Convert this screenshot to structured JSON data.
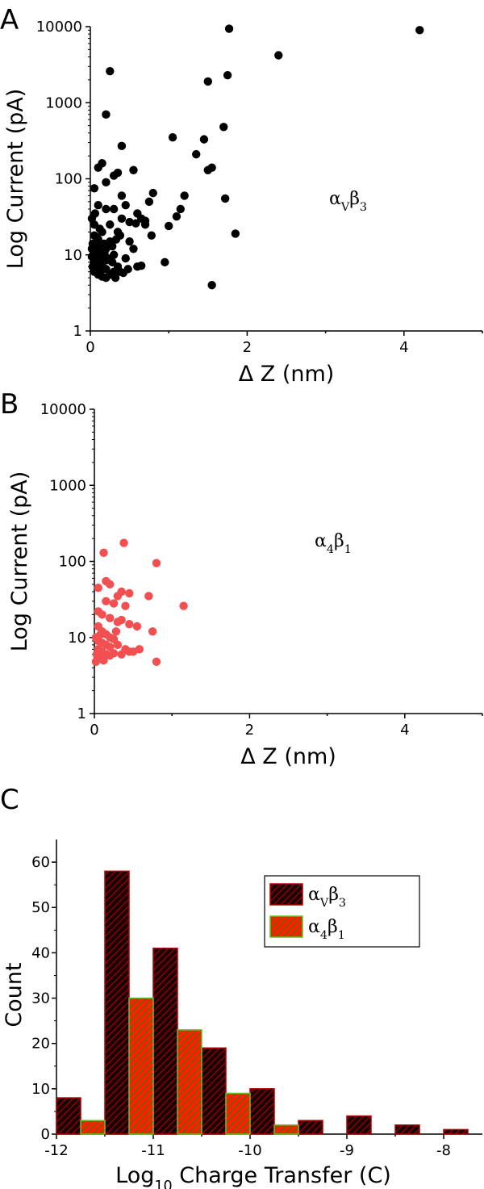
{
  "chart_data": [
    {
      "panel": "A",
      "type": "scatter",
      "xlabel": "Δ Z (nm)",
      "ylabel": "Log Current (pA)",
      "yscale": "log",
      "xlim": [
        0,
        5
      ],
      "ylim": [
        1,
        10000
      ],
      "x_ticks": [
        "0",
        "2",
        "4"
      ],
      "y_ticks": [
        "1",
        "10",
        "100",
        "1000",
        "10000"
      ],
      "annotation": {
        "base": "α",
        "sub1": "V",
        "mid": "β",
        "sub2": "3"
      },
      "color": "#000000",
      "points": [
        [
          0.25,
          2600
        ],
        [
          0.2,
          700
        ],
        [
          0.05,
          75
        ],
        [
          0.15,
          160
        ],
        [
          0.1,
          140
        ],
        [
          0.2,
          90
        ],
        [
          0.3,
          110
        ],
        [
          0.35,
          120
        ],
        [
          0.4,
          270
        ],
        [
          0.55,
          130
        ],
        [
          0.4,
          60
        ],
        [
          0.45,
          45
        ],
        [
          0.3,
          40
        ],
        [
          0.1,
          45
        ],
        [
          0.2,
          40
        ],
        [
          0.6,
          35
        ],
        [
          0.65,
          30
        ],
        [
          0.7,
          28
        ],
        [
          0.75,
          50
        ],
        [
          0.8,
          65
        ],
        [
          0.7,
          25
        ],
        [
          0.78,
          18
        ],
        [
          0.5,
          15
        ],
        [
          0.55,
          12
        ],
        [
          0.35,
          20
        ],
        [
          0.4,
          30
        ],
        [
          0.5,
          27
        ],
        [
          0.05,
          25
        ],
        [
          0.15,
          20
        ],
        [
          0.25,
          15
        ],
        [
          0.3,
          10
        ],
        [
          0.45,
          9
        ],
        [
          0.35,
          7
        ],
        [
          0.3,
          6
        ],
        [
          0.05,
          18
        ],
        [
          0.1,
          16
        ],
        [
          0.15,
          14
        ],
        [
          0.2,
          12
        ],
        [
          0.05,
          11
        ],
        [
          0.1,
          10
        ],
        [
          0.15,
          9
        ],
        [
          0.2,
          8.5
        ],
        [
          0.05,
          8
        ],
        [
          0.1,
          7.5
        ],
        [
          0.15,
          7
        ],
        [
          0.2,
          6.5
        ],
        [
          0.05,
          6
        ],
        [
          0.1,
          5.5
        ],
        [
          0.15,
          5.2
        ],
        [
          0.2,
          5
        ],
        [
          0.02,
          12
        ],
        [
          0.08,
          13
        ],
        [
          0.12,
          11
        ],
        [
          0.18,
          10.5
        ],
        [
          0.22,
          9
        ],
        [
          0.28,
          8
        ],
        [
          0.02,
          9.5
        ],
        [
          0.06,
          8.5
        ],
        [
          0.03,
          7
        ],
        [
          0.07,
          6.5
        ],
        [
          0.12,
          6
        ],
        [
          0.25,
          5.5
        ],
        [
          0.32,
          5
        ],
        [
          0.38,
          6
        ],
        [
          0.42,
          5.8
        ],
        [
          0.48,
          6.5
        ],
        [
          0.6,
          7
        ],
        [
          0.65,
          7.2
        ],
        [
          0.95,
          8
        ],
        [
          0.58,
          26
        ],
        [
          1.0,
          24
        ],
        [
          1.15,
          40
        ],
        [
          1.1,
          32
        ],
        [
          1.2,
          60
        ],
        [
          1.05,
          350
        ],
        [
          1.35,
          210
        ],
        [
          1.45,
          330
        ],
        [
          1.5,
          130
        ],
        [
          1.55,
          140
        ],
        [
          1.5,
          1900
        ],
        [
          1.75,
          2300
        ],
        [
          1.77,
          9400
        ],
        [
          1.7,
          480
        ],
        [
          1.72,
          55
        ],
        [
          1.85,
          19
        ],
        [
          1.55,
          4
        ],
        [
          2.4,
          4200
        ],
        [
          4.2,
          9000
        ],
        [
          0.02,
          30
        ],
        [
          0.06,
          35
        ],
        [
          0.12,
          22
        ],
        [
          0.25,
          25
        ],
        [
          0.08,
          17
        ],
        [
          0.18,
          14
        ],
        [
          0.28,
          13
        ],
        [
          0.33,
          16
        ],
        [
          0.38,
          18
        ],
        [
          0.03,
          14
        ]
      ]
    },
    {
      "panel": "B",
      "type": "scatter",
      "xlabel": "Δ Z (nm)",
      "ylabel": "Log Current (pA)",
      "yscale": "log",
      "xlim": [
        0,
        5
      ],
      "ylim": [
        1,
        10000
      ],
      "x_ticks": [
        "0",
        "2",
        "4"
      ],
      "y_ticks": [
        "1",
        "10",
        "100",
        "1000",
        "10000"
      ],
      "annotation": {
        "base": "α",
        "sub1": "4",
        "mid": "β",
        "sub2": "1"
      },
      "color": "#f25050",
      "points": [
        [
          0.38,
          175
        ],
        [
          0.12,
          130
        ],
        [
          0.8,
          95
        ],
        [
          0.15,
          55
        ],
        [
          0.2,
          50
        ],
        [
          0.05,
          45
        ],
        [
          0.35,
          40
        ],
        [
          0.45,
          38
        ],
        [
          0.3,
          35
        ],
        [
          0.7,
          35
        ],
        [
          0.15,
          30
        ],
        [
          0.25,
          28
        ],
        [
          0.4,
          26
        ],
        [
          1.15,
          26
        ],
        [
          0.05,
          22
        ],
        [
          0.1,
          20
        ],
        [
          0.2,
          18
        ],
        [
          0.3,
          16
        ],
        [
          0.45,
          15
        ],
        [
          0.55,
          14
        ],
        [
          0.75,
          12
        ],
        [
          0.05,
          14
        ],
        [
          0.1,
          12
        ],
        [
          0.15,
          11
        ],
        [
          0.2,
          10
        ],
        [
          0.25,
          9.5
        ],
        [
          0.05,
          9
        ],
        [
          0.1,
          8.5
        ],
        [
          0.15,
          8
        ],
        [
          0.2,
          7.5
        ],
        [
          0.3,
          8
        ],
        [
          0.4,
          7
        ],
        [
          0.45,
          6.5
        ],
        [
          0.5,
          6.5
        ],
        [
          0.58,
          7
        ],
        [
          0.05,
          7
        ],
        [
          0.1,
          6.5
        ],
        [
          0.15,
          6
        ],
        [
          0.2,
          5.8
        ],
        [
          0.03,
          6
        ],
        [
          0.06,
          5.5
        ],
        [
          0.09,
          5.2
        ],
        [
          0.12,
          5
        ],
        [
          0.02,
          4.8
        ],
        [
          0.35,
          6
        ],
        [
          0.25,
          6.2
        ],
        [
          0.8,
          4.8
        ],
        [
          0.35,
          17
        ],
        [
          0.02,
          10
        ],
        [
          0.08,
          11
        ],
        [
          0.28,
          12
        ]
      ]
    },
    {
      "panel": "C",
      "type": "bar",
      "xlabel_main": "Log",
      "xlabel_sub": "10",
      "xlabel_rest": " Charge Transfer (C)",
      "ylabel": "Count",
      "xlim": [
        -12,
        -7.6
      ],
      "ylim": [
        0,
        65
      ],
      "x_ticks": [
        "-12",
        "-11",
        "-10",
        "-9",
        "-8"
      ],
      "y_ticks": [
        "0",
        "10",
        "20",
        "30",
        "40",
        "50",
        "60"
      ],
      "bin_width": 0.25,
      "series": [
        {
          "legend_base": "α",
          "legend_sub1": "V",
          "legend_mid": "β",
          "legend_sub2": "3",
          "color": "#1a0000",
          "stroke": "#b00000",
          "hatch": "#c00000",
          "bins": [
            [
              -12.0,
              8
            ],
            [
              -11.5,
              58
            ],
            [
              -11.0,
              41
            ],
            [
              -10.5,
              19
            ],
            [
              -10.0,
              10
            ],
            [
              -9.5,
              3
            ],
            [
              -9.0,
              4
            ],
            [
              -8.5,
              2
            ],
            [
              -8.0,
              1
            ]
          ]
        },
        {
          "legend_base": "α",
          "legend_sub1": "4",
          "legend_mid": "β",
          "legend_sub2": "1",
          "color": "#ff2000",
          "stroke": "#60c020",
          "hatch": "#208000",
          "bins": [
            [
              -11.75,
              3
            ],
            [
              -11.25,
              30
            ],
            [
              -10.75,
              23
            ],
            [
              -10.25,
              9
            ],
            [
              -9.75,
              2
            ]
          ]
        }
      ]
    }
  ],
  "panels": {
    "a": {
      "letter": "A"
    },
    "b": {
      "letter": "B"
    },
    "c": {
      "letter": "C"
    }
  }
}
